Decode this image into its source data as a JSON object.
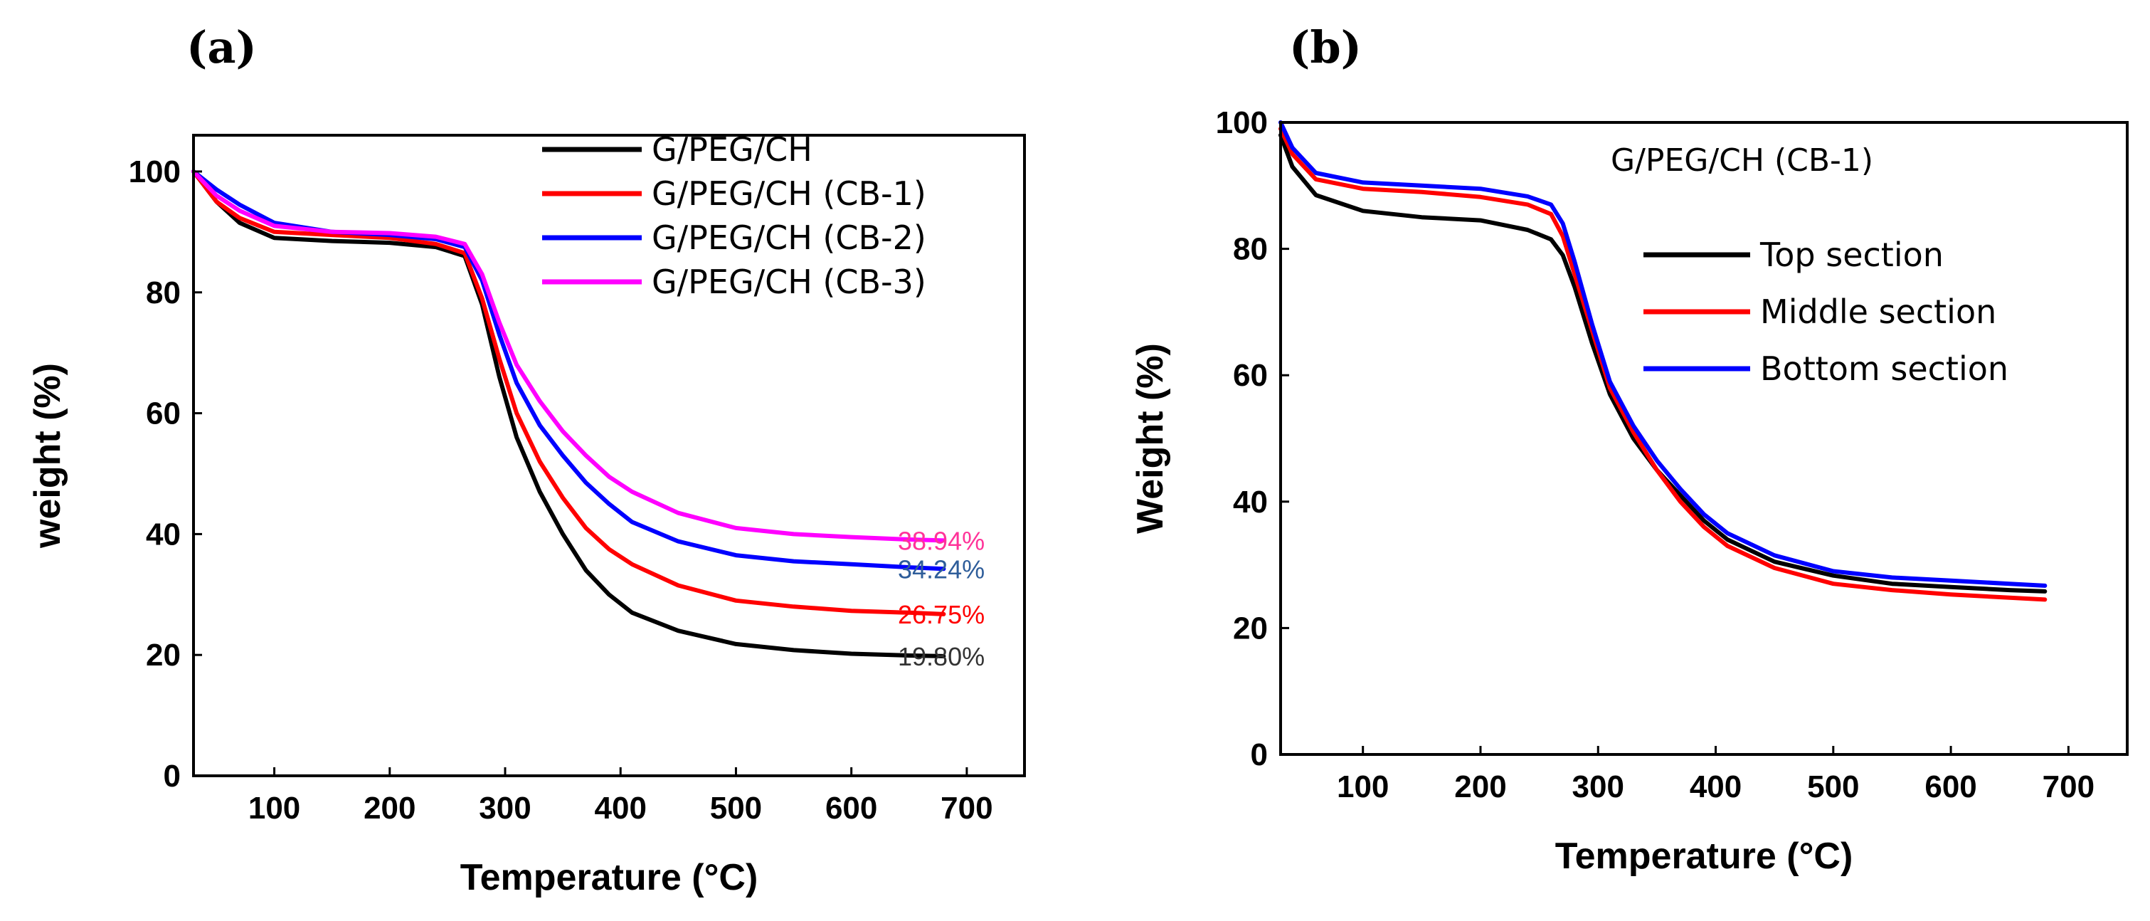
{
  "chart_data": [
    {
      "panel": "(a)",
      "type": "line",
      "xlabel": "Temperature (°C)",
      "ylabel": "weight (%)",
      "xlim": [
        30,
        750
      ],
      "ylim": [
        0,
        106
      ],
      "xticks": [
        100,
        200,
        300,
        400,
        500,
        600,
        700
      ],
      "yticks": [
        0,
        20,
        40,
        60,
        80,
        100
      ],
      "legend_position": "top-right",
      "series": [
        {
          "name": "G/PEG/CH",
          "color": "#000000",
          "label": "19.80%",
          "label_color": "#333333",
          "points": [
            [
              30,
              100
            ],
            [
              50,
              95
            ],
            [
              70,
              91.5
            ],
            [
              100,
              89
            ],
            [
              150,
              88.5
            ],
            [
              200,
              88.2
            ],
            [
              240,
              87.5
            ],
            [
              265,
              86
            ],
            [
              280,
              78
            ],
            [
              295,
              66
            ],
            [
              310,
              56
            ],
            [
              330,
              47
            ],
            [
              350,
              40
            ],
            [
              370,
              34
            ],
            [
              390,
              30
            ],
            [
              410,
              27
            ],
            [
              450,
              24
            ],
            [
              500,
              21.8
            ],
            [
              550,
              20.8
            ],
            [
              600,
              20.2
            ],
            [
              650,
              19.9
            ],
            [
              680,
              19.8
            ]
          ]
        },
        {
          "name": "G/PEG/CH (CB-1)",
          "color": "#ff0000",
          "label": "26.75%",
          "label_color": "#ff0000",
          "points": [
            [
              30,
              100
            ],
            [
              50,
              95
            ],
            [
              70,
              92.3
            ],
            [
              100,
              90
            ],
            [
              150,
              89.5
            ],
            [
              200,
              89
            ],
            [
              240,
              88
            ],
            [
              265,
              86.5
            ],
            [
              280,
              79
            ],
            [
              295,
              69
            ],
            [
              310,
              60
            ],
            [
              330,
              52
            ],
            [
              350,
              46
            ],
            [
              370,
              41
            ],
            [
              390,
              37.5
            ],
            [
              410,
              35
            ],
            [
              450,
              31.5
            ],
            [
              500,
              29
            ],
            [
              550,
              28
            ],
            [
              600,
              27.3
            ],
            [
              650,
              27
            ],
            [
              680,
              26.75
            ]
          ]
        },
        {
          "name": "G/PEG/CH (CB-2)",
          "color": "#0000ff",
          "label": "34.24%",
          "label_color": "#2e5d9a",
          "points": [
            [
              30,
              100
            ],
            [
              50,
              97
            ],
            [
              70,
              94.5
            ],
            [
              100,
              91.5
            ],
            [
              150,
              90
            ],
            [
              200,
              89.5
            ],
            [
              240,
              88.8
            ],
            [
              265,
              87.5
            ],
            [
              280,
              82
            ],
            [
              295,
              73
            ],
            [
              310,
              65
            ],
            [
              330,
              58
            ],
            [
              350,
              53
            ],
            [
              370,
              48.5
            ],
            [
              390,
              45
            ],
            [
              410,
              42
            ],
            [
              450,
              38.8
            ],
            [
              500,
              36.5
            ],
            [
              550,
              35.5
            ],
            [
              600,
              35
            ],
            [
              650,
              34.5
            ],
            [
              680,
              34.24
            ]
          ]
        },
        {
          "name": "G/PEG/CH (CB-3)",
          "color": "#ff00ff",
          "label": "38.94%",
          "label_color": "#ff3399",
          "points": [
            [
              30,
              100
            ],
            [
              50,
              96
            ],
            [
              70,
              93.5
            ],
            [
              100,
              91
            ],
            [
              150,
              90
            ],
            [
              200,
              89.8
            ],
            [
              240,
              89.2
            ],
            [
              265,
              88
            ],
            [
              280,
              83
            ],
            [
              295,
              75
            ],
            [
              310,
              68
            ],
            [
              330,
              62
            ],
            [
              350,
              57
            ],
            [
              370,
              53
            ],
            [
              390,
              49.5
            ],
            [
              410,
              47
            ],
            [
              450,
              43.5
            ],
            [
              500,
              41
            ],
            [
              550,
              40
            ],
            [
              600,
              39.5
            ],
            [
              650,
              39.1
            ],
            [
              680,
              38.94
            ]
          ]
        }
      ]
    },
    {
      "panel": "(b)",
      "type": "line",
      "xlabel": "Temperature (°C)",
      "ylabel": "Weight (%)",
      "annotation": "G/PEG/CH (CB-1)",
      "xlim": [
        30,
        750
      ],
      "ylim": [
        0,
        100
      ],
      "xticks": [
        100,
        200,
        300,
        400,
        500,
        600,
        700
      ],
      "yticks": [
        0,
        20,
        40,
        60,
        80,
        100
      ],
      "legend_position": "top-right",
      "series": [
        {
          "name": "Top section",
          "color": "#000000",
          "points": [
            [
              30,
              98
            ],
            [
              40,
              93
            ],
            [
              60,
              88.5
            ],
            [
              100,
              86
            ],
            [
              150,
              85
            ],
            [
              200,
              84.5
            ],
            [
              240,
              83
            ],
            [
              260,
              81.5
            ],
            [
              270,
              79
            ],
            [
              280,
              74
            ],
            [
              295,
              65
            ],
            [
              310,
              57
            ],
            [
              330,
              50
            ],
            [
              350,
              45
            ],
            [
              370,
              41
            ],
            [
              390,
              37
            ],
            [
              410,
              34
            ],
            [
              450,
              30.5
            ],
            [
              500,
              28.3
            ],
            [
              550,
              27
            ],
            [
              600,
              26.5
            ],
            [
              650,
              26
            ],
            [
              680,
              25.8
            ]
          ]
        },
        {
          "name": "Middle section",
          "color": "#ff0000",
          "points": [
            [
              30,
              99
            ],
            [
              40,
              95
            ],
            [
              60,
              91
            ],
            [
              100,
              89.5
            ],
            [
              150,
              89
            ],
            [
              200,
              88.2
            ],
            [
              240,
              87
            ],
            [
              260,
              85.5
            ],
            [
              270,
              82
            ],
            [
              280,
              76
            ],
            [
              295,
              67
            ],
            [
              310,
              58
            ],
            [
              330,
              51
            ],
            [
              350,
              45
            ],
            [
              370,
              40
            ],
            [
              390,
              36
            ],
            [
              410,
              33
            ],
            [
              450,
              29.5
            ],
            [
              500,
              27
            ],
            [
              550,
              26
            ],
            [
              600,
              25.3
            ],
            [
              650,
              24.8
            ],
            [
              680,
              24.5
            ]
          ]
        },
        {
          "name": "Bottom section",
          "color": "#0000ff",
          "points": [
            [
              30,
              100
            ],
            [
              40,
              96
            ],
            [
              60,
              92
            ],
            [
              100,
              90.5
            ],
            [
              150,
              90
            ],
            [
              200,
              89.5
            ],
            [
              240,
              88.3
            ],
            [
              260,
              87
            ],
            [
              270,
              84
            ],
            [
              280,
              78
            ],
            [
              295,
              68
            ],
            [
              310,
              59
            ],
            [
              330,
              52
            ],
            [
              350,
              46.5
            ],
            [
              370,
              42
            ],
            [
              390,
              38
            ],
            [
              410,
              35
            ],
            [
              450,
              31.5
            ],
            [
              500,
              29
            ],
            [
              550,
              28
            ],
            [
              600,
              27.5
            ],
            [
              650,
              27
            ],
            [
              680,
              26.7
            ]
          ]
        }
      ]
    }
  ]
}
